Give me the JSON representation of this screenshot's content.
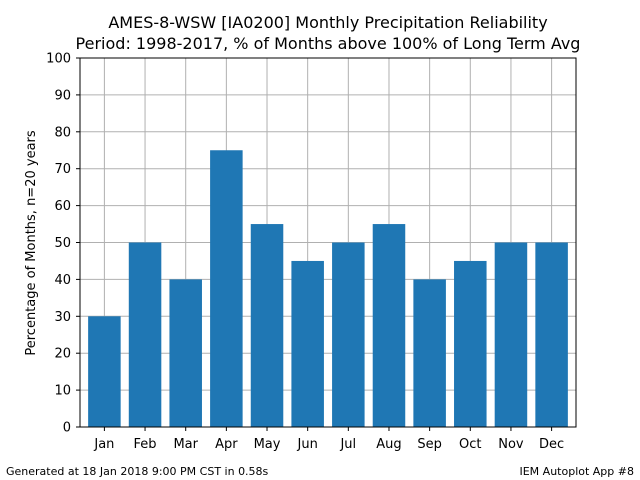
{
  "chart_data": {
    "type": "bar",
    "title_lines": [
      "AMES-8-WSW [IA0200] Monthly Precipitation Reliability",
      "Period: 1998-2017, % of Months above 100% of Long Term Avg"
    ],
    "xlabel": "",
    "ylabel": "Percentage of Months, n=20 years",
    "categories": [
      "Jan",
      "Feb",
      "Mar",
      "Apr",
      "May",
      "Jun",
      "Jul",
      "Aug",
      "Sep",
      "Oct",
      "Nov",
      "Dec"
    ],
    "values": [
      30,
      50,
      40,
      75,
      55,
      45,
      50,
      55,
      40,
      45,
      50,
      50
    ],
    "ylim": [
      0,
      100
    ],
    "yticks": [
      0,
      10,
      20,
      30,
      40,
      50,
      60,
      70,
      80,
      90,
      100
    ],
    "grid": true,
    "bar_color": "#1f77b4",
    "grid_color": "#b0b0b0"
  },
  "footer": {
    "left": "Generated at 18 Jan 2018 9:00 PM CST in 0.58s",
    "right": "IEM Autoplot App #8"
  }
}
